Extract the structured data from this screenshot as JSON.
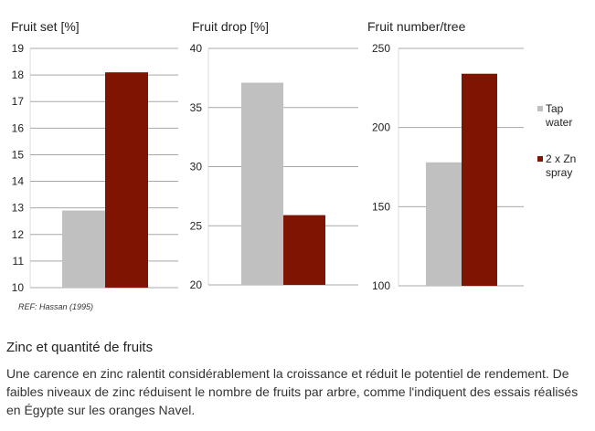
{
  "chart_data": [
    {
      "type": "bar",
      "title": "Fruit set [%]",
      "ylim": [
        10,
        19
      ],
      "yticks": [
        10,
        11,
        12,
        13,
        14,
        15,
        16,
        17,
        18,
        19
      ],
      "grid": true,
      "series": [
        {
          "name": "Tap water",
          "values": [
            12.9
          ]
        },
        {
          "name": "2 x Zn spray",
          "values": [
            18.1
          ]
        }
      ]
    },
    {
      "type": "bar",
      "title": "Fruit drop [%]",
      "ylim": [
        20,
        40
      ],
      "yticks": [
        20,
        25,
        30,
        35,
        40
      ],
      "grid": true,
      "series": [
        {
          "name": "Tap water",
          "values": [
            37.1
          ]
        },
        {
          "name": "2 x Zn spray",
          "values": [
            25.9
          ]
        }
      ]
    },
    {
      "type": "bar",
      "title": "Fruit number/tree",
      "ylim": [
        100,
        250
      ],
      "yticks": [
        100,
        150,
        200,
        250
      ],
      "grid": true,
      "series": [
        {
          "name": "Tap water",
          "values": [
            178
          ]
        },
        {
          "name": "2 x Zn spray",
          "values": [
            234
          ]
        }
      ]
    }
  ],
  "legend": {
    "placement": "right",
    "items": [
      {
        "line1": "Tap",
        "line2": "water",
        "color": "#c0c0c0"
      },
      {
        "line1": "2 x Zn",
        "line2": "spray",
        "color": "#7f1402"
      }
    ]
  },
  "reference": "REF: Hassan (1995)",
  "section": {
    "heading": "Zinc et quantité de fruits",
    "paragraph": "Une carence en zinc ralentit considérablement la croissance et réduit le potentiel de rendement. De faibles niveaux de zinc réduisent le nombre de fruits par arbre, comme l'indiquent des essais réalisés en Égypte sur les oranges Navel."
  }
}
